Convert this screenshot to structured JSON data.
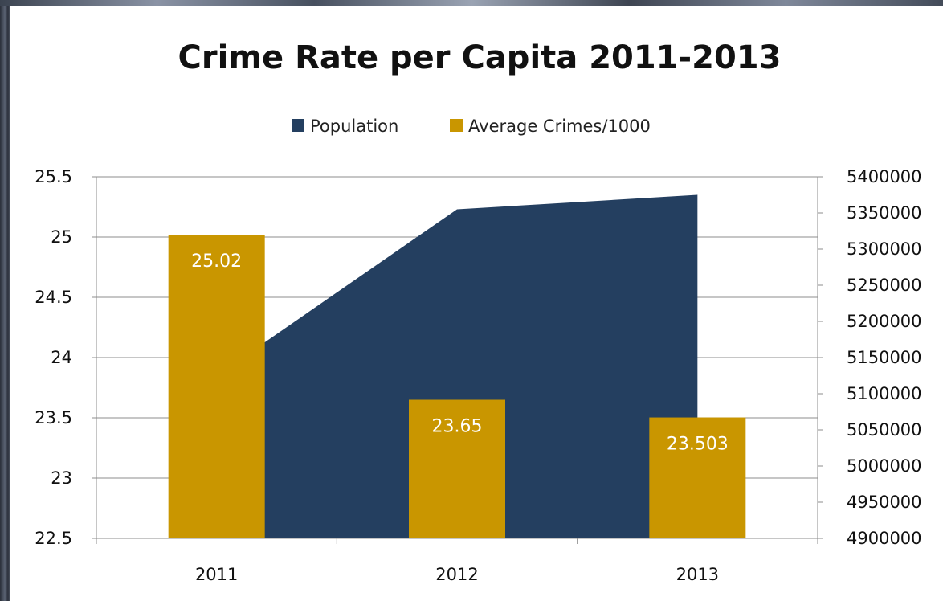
{
  "chart_data": {
    "type": "bar",
    "title": "Crime Rate per Capita 2011-2013",
    "categories": [
      "2011",
      "2012",
      "2013"
    ],
    "series": [
      {
        "name": "Population",
        "kind": "area",
        "axis": "right",
        "values": [
          5125000,
          5355000,
          5375000
        ],
        "color": "#243f60"
      },
      {
        "name": "Average Crimes/1000",
        "kind": "bar",
        "axis": "left",
        "values": [
          25.02,
          23.65,
          23.503
        ],
        "data_labels": [
          "25.02",
          "23.65",
          "23.503"
        ],
        "color": "#c99600"
      }
    ],
    "y_left": {
      "range": [
        22.5,
        25.5
      ],
      "ticks": [
        "22.5",
        "23",
        "23.5",
        "24",
        "24.5",
        "25",
        "25.5"
      ]
    },
    "y_right": {
      "range": [
        4900000,
        5400000
      ],
      "ticks": [
        "4900000",
        "4950000",
        "5000000",
        "5050000",
        "5100000",
        "5150000",
        "5200000",
        "5250000",
        "5300000",
        "5350000",
        "5400000"
      ]
    },
    "grid": true,
    "legend_position": "top"
  }
}
